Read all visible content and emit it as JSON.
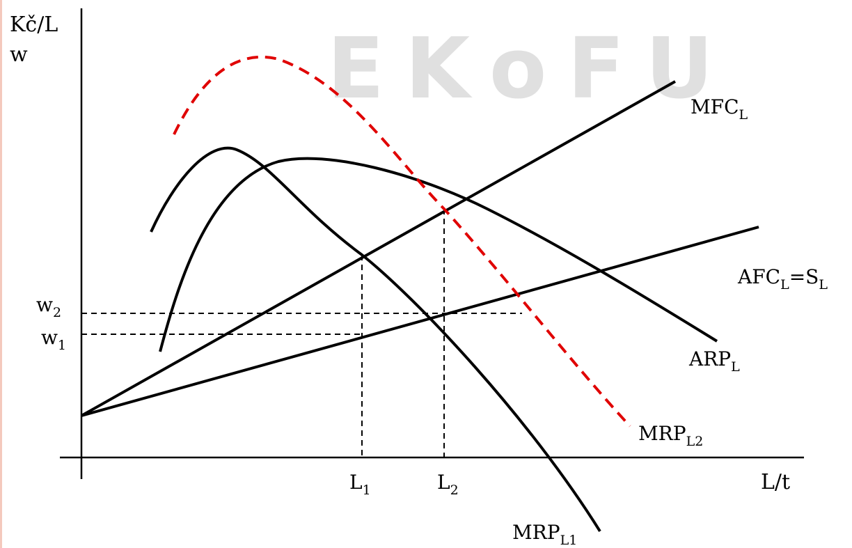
{
  "watermark": {
    "text": "EKoFU",
    "color": "#e0e0e0"
  },
  "axes": {
    "y_label_1": "Kč/L",
    "y_label_2": "w",
    "x_label": "L/t"
  },
  "ticks": {
    "w2": {
      "base": "w",
      "sub": "2"
    },
    "w1": {
      "base": "w",
      "sub": "1"
    },
    "L1": {
      "base": "L",
      "sub": "1"
    },
    "L2": {
      "base": "L",
      "sub": "2"
    }
  },
  "curves": {
    "mfc": {
      "base": "MFC",
      "sub": "L"
    },
    "afc": {
      "base": "AFC",
      "sub": "L",
      "tail": "=S",
      "sub2": "L"
    },
    "arp": {
      "base": "ARP",
      "sub": "L"
    },
    "mrp1": {
      "base": "MRP",
      "sub": "L1"
    },
    "mrp2": {
      "base": "MRP",
      "sub": "L2"
    }
  },
  "colors": {
    "line": "#000000",
    "mrp2": "#e00000",
    "left_edge": "#f4c9bd"
  }
}
